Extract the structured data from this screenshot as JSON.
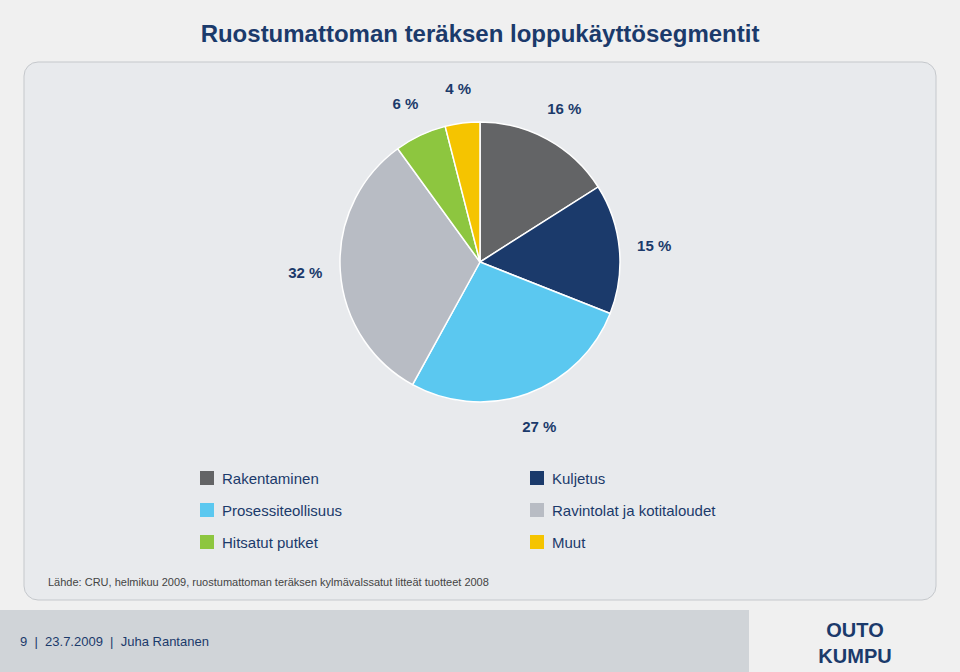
{
  "chart_data": {
    "type": "pie",
    "title": "Ruostumattoman teräksen loppukäyttösegmentit",
    "categories": [
      "Rakentaminen",
      "Kuljetus",
      "Prosessiteollisuus",
      "Ravintolat ja kotitaloudet",
      "Hitsatut putket",
      "Muut"
    ],
    "values": [
      16,
      15,
      27,
      32,
      6,
      4
    ],
    "value_labels": [
      "16 %",
      "15 %",
      "27 %",
      "32 %",
      "6 %",
      "4 %"
    ],
    "data_labels": true,
    "colors": [
      "#636466",
      "#1b3a6b",
      "#5bc8f0",
      "#b8bcc4",
      "#8dc63f",
      "#f5c400"
    ],
    "legend": "bottom",
    "annotations": [
      "Lähde: CRU, helmikuu 2009, ruostumattoman teräksen kylmävalssatut litteät tuotteet 2008",
      "9  |  23.7.2009  |  Juha Rantanen",
      "OUTO",
      "KUMPU"
    ]
  }
}
